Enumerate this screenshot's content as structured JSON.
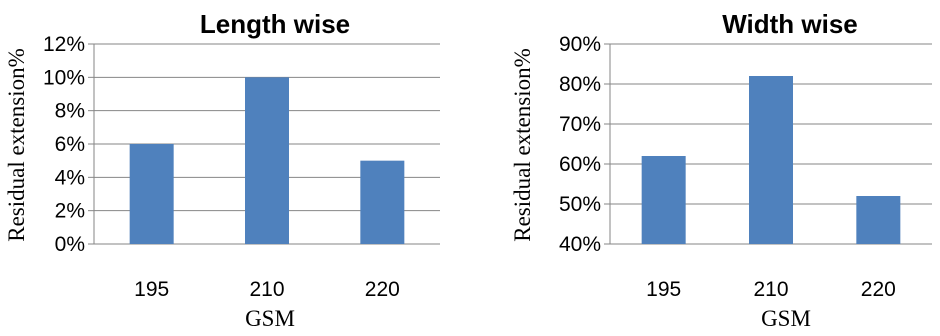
{
  "chart_data": [
    {
      "type": "bar",
      "title": "Length wise",
      "xlabel": "GSM",
      "ylabel": "Residual extension%",
      "categories": [
        "195",
        "210",
        "220"
      ],
      "values": [
        6,
        10,
        5
      ],
      "ylim": [
        0,
        12
      ],
      "yticks": [
        "0%",
        "2%",
        "4%",
        "6%",
        "8%",
        "10%",
        "12%"
      ],
      "grid": true,
      "bar_color": "#4f81bd"
    },
    {
      "type": "bar",
      "title": "Width wise",
      "xlabel": "GSM",
      "ylabel": "Residual extension%",
      "categories": [
        "195",
        "210",
        "220"
      ],
      "values": [
        62,
        82,
        52
      ],
      "ylim": [
        40,
        90
      ],
      "yticks": [
        "40%",
        "50%",
        "60%",
        "70%",
        "80%",
        "90%"
      ],
      "grid": true,
      "bar_color": "#4f81bd"
    }
  ]
}
